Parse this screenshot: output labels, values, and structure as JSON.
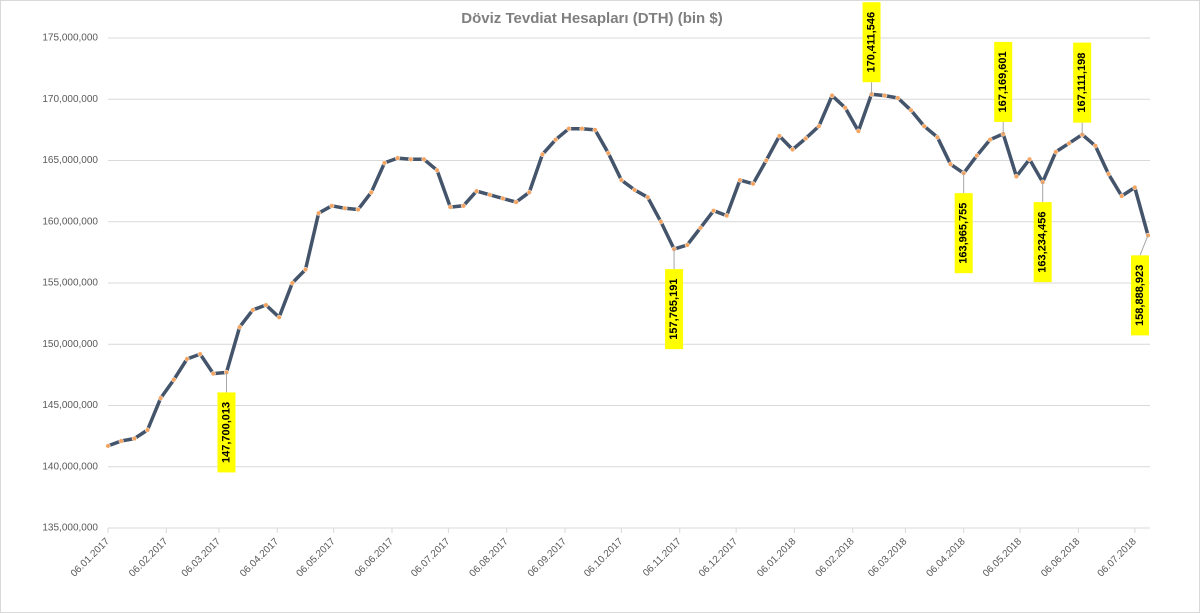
{
  "chart_data": {
    "type": "line",
    "title": "Döviz Tevdiat Hesapları (DTH) (bin $)",
    "color": "#44546a",
    "marker_color": "#f4a460",
    "grid": true,
    "x": [
      "06.01.2017",
      "13.01.2017",
      "20.01.2017",
      "27.01.2017",
      "03.02.2017",
      "10.02.2017",
      "17.02.2017",
      "24.02.2017",
      "03.03.2017",
      "10.03.2017",
      "17.03.2017",
      "24.03.2017",
      "31.03.2017",
      "07.04.2017",
      "14.04.2017",
      "21.04.2017",
      "28.04.2017",
      "05.05.2017",
      "12.05.2017",
      "19.05.2017",
      "26.05.2017",
      "02.06.2017",
      "09.06.2017",
      "16.06.2017",
      "23.06.2017",
      "30.06.2017",
      "07.07.2017",
      "14.07.2017",
      "21.07.2017",
      "28.07.2017",
      "04.08.2017",
      "11.08.2017",
      "18.08.2017",
      "25.08.2017",
      "01.09.2017",
      "08.09.2017",
      "15.09.2017",
      "22.09.2017",
      "29.09.2017",
      "06.10.2017",
      "13.10.2017",
      "20.10.2017",
      "27.10.2017",
      "03.11.2017",
      "10.11.2017",
      "17.11.2017",
      "24.11.2017",
      "01.12.2017",
      "08.12.2017",
      "15.12.2017",
      "22.12.2017",
      "29.12.2017",
      "05.01.2018",
      "12.01.2018",
      "19.01.2018",
      "26.01.2018",
      "02.02.2018",
      "09.02.2018",
      "16.02.2018",
      "23.02.2018",
      "02.03.2018",
      "09.03.2018",
      "16.03.2018",
      "23.03.2018",
      "30.03.2018",
      "06.04.2018",
      "13.04.2018",
      "20.04.2018",
      "27.04.2018",
      "04.05.2018",
      "11.05.2018",
      "18.05.2018",
      "25.05.2018",
      "01.06.2018",
      "08.06.2018",
      "15.06.2018",
      "22.06.2018",
      "29.06.2018",
      "06.07.2018",
      "13.07.2018"
    ],
    "values": [
      141700000,
      142100000,
      142300000,
      143000000,
      145600000,
      147100000,
      148800000,
      149200000,
      147600000,
      147700013,
      151400000,
      152800000,
      153200000,
      152200000,
      155000000,
      156100000,
      160700000,
      161300000,
      161100000,
      161000000,
      162400000,
      164800000,
      165200000,
      165100000,
      165100000,
      164200000,
      161200000,
      161300000,
      162500000,
      162200000,
      161900000,
      161600000,
      162400000,
      165500000,
      166700000,
      167600000,
      167600000,
      167500000,
      165600000,
      163400000,
      162600000,
      162000000,
      160000000,
      157765191,
      158100000,
      159500000,
      160900000,
      160500000,
      163400000,
      163100000,
      165000000,
      167000000,
      165900000,
      166800000,
      167800000,
      170300000,
      169300000,
      167400000,
      170411546,
      170300000,
      170100000,
      169100000,
      167800000,
      166900000,
      164700000,
      163965755,
      165400000,
      166700000,
      167169601,
      163700000,
      165100000,
      163234456,
      165700000,
      166400000,
      167111198,
      166200000,
      163900000,
      162100000,
      162800000,
      158888923
    ],
    "value_labels": [
      null,
      null,
      null,
      null,
      null,
      null,
      null,
      null,
      null,
      "147,700,013",
      null,
      null,
      null,
      null,
      null,
      null,
      null,
      null,
      null,
      null,
      null,
      null,
      null,
      null,
      null,
      null,
      null,
      null,
      null,
      null,
      null,
      null,
      null,
      null,
      null,
      null,
      null,
      null,
      null,
      null,
      null,
      null,
      null,
      "157,765,191",
      null,
      null,
      null,
      null,
      null,
      null,
      null,
      null,
      null,
      null,
      null,
      null,
      null,
      null,
      "170,411,546",
      null,
      null,
      null,
      null,
      null,
      null,
      "163,965,755",
      null,
      null,
      "167,169,601",
      null,
      null,
      "163,234,456",
      null,
      null,
      "167,111,198",
      null,
      null,
      null,
      null,
      "158,888,923"
    ],
    "xlim": [
      "06.01.2017",
      "13.07.2018"
    ],
    "xticks": [
      "06.01.2017",
      "06.02.2017",
      "06.03.2017",
      "06.04.2017",
      "06.05.2017",
      "06.06.2017",
      "06.07.2017",
      "06.08.2017",
      "06.09.2017",
      "06.10.2017",
      "06.11.2017",
      "06.12.2017",
      "06.01.2018",
      "06.02.2018",
      "06.03.2018",
      "06.04.2018",
      "06.05.2018",
      "06.06.2018",
      "06.07.2018"
    ],
    "ylim": [
      135000000,
      175000000
    ],
    "yticks": [
      {
        "value": 135000000,
        "label": "135,000,000"
      },
      {
        "value": 140000000,
        "label": "140,000,000"
      },
      {
        "value": 145000000,
        "label": "145,000,000"
      },
      {
        "value": 150000000,
        "label": "150,000,000"
      },
      {
        "value": 155000000,
        "label": "155,000,000"
      },
      {
        "value": 160000000,
        "label": "160,000,000"
      },
      {
        "value": 165000000,
        "label": "165,000,000"
      },
      {
        "value": 170000000,
        "label": "170,000,000"
      },
      {
        "value": 175000000,
        "label": "175,000,000"
      }
    ]
  }
}
